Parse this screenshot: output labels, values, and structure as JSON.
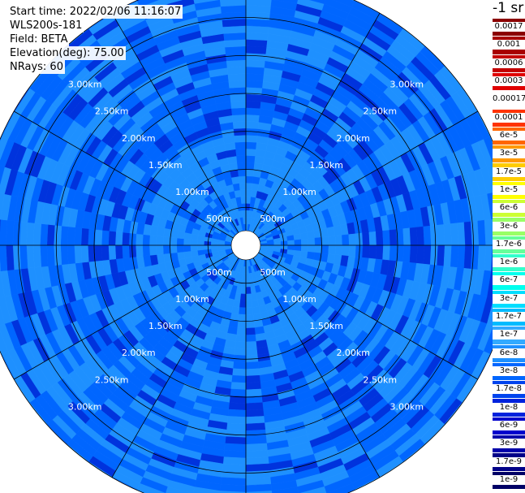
{
  "chart_data": {
    "type": "heatmap",
    "subtype": "radar-ppi",
    "info": {
      "start_time": "Start time: 2022/02/06 11:16:07",
      "instrument": "WLS200s-181",
      "field": "Field: BETA",
      "elevation": "Elevation(deg): 75.00",
      "nrays": "NRays: 60"
    },
    "unit_label": "-1 sr",
    "range_rings_km": [
      0.5,
      1.0,
      1.5,
      2.0,
      2.5,
      3.0
    ],
    "ring_labels": [
      "500m",
      "1.00km",
      "1.50km",
      "2.00km",
      "2.50km",
      "3.00km"
    ],
    "spokes_deg": [
      0,
      30,
      60,
      90,
      120,
      150,
      180,
      210,
      240,
      270,
      300,
      330
    ],
    "grid": true,
    "colorbar": {
      "labels": [
        "0.0017",
        "0.001",
        "0.0006",
        "0.0003",
        "0.00017",
        "0.0001",
        "6e-5",
        "3e-5",
        "1.7e-5",
        "1e-5",
        "6e-6",
        "3e-6",
        "1.7e-6",
        "1e-6",
        "6e-7",
        "3e-7",
        "1.7e-7",
        "1e-7",
        "6e-8",
        "3e-8",
        "1.7e-8",
        "1e-8",
        "6e-9",
        "3e-9",
        "1.7e-9",
        "1e-9"
      ],
      "colors": [
        "#8b0000",
        "#a80000",
        "#c40000",
        "#e00000",
        "#ffffff",
        "#ff3300",
        "#ff6600",
        "#ff9900",
        "#ffcc00",
        "#ffff00",
        "#ccff33",
        "#99ff66",
        "#66ff99",
        "#33ffcc",
        "#00ffee",
        "#00ddff",
        "#00bbff",
        "#33aaff",
        "#1e90ff",
        "#0066ff",
        "#0044ee",
        "#0022dd",
        "#0000cc",
        "#0000aa",
        "#000088",
        "#000066"
      ]
    },
    "field_classes": [
      "1.7e-8",
      "1e-8",
      "6e-9"
    ]
  }
}
